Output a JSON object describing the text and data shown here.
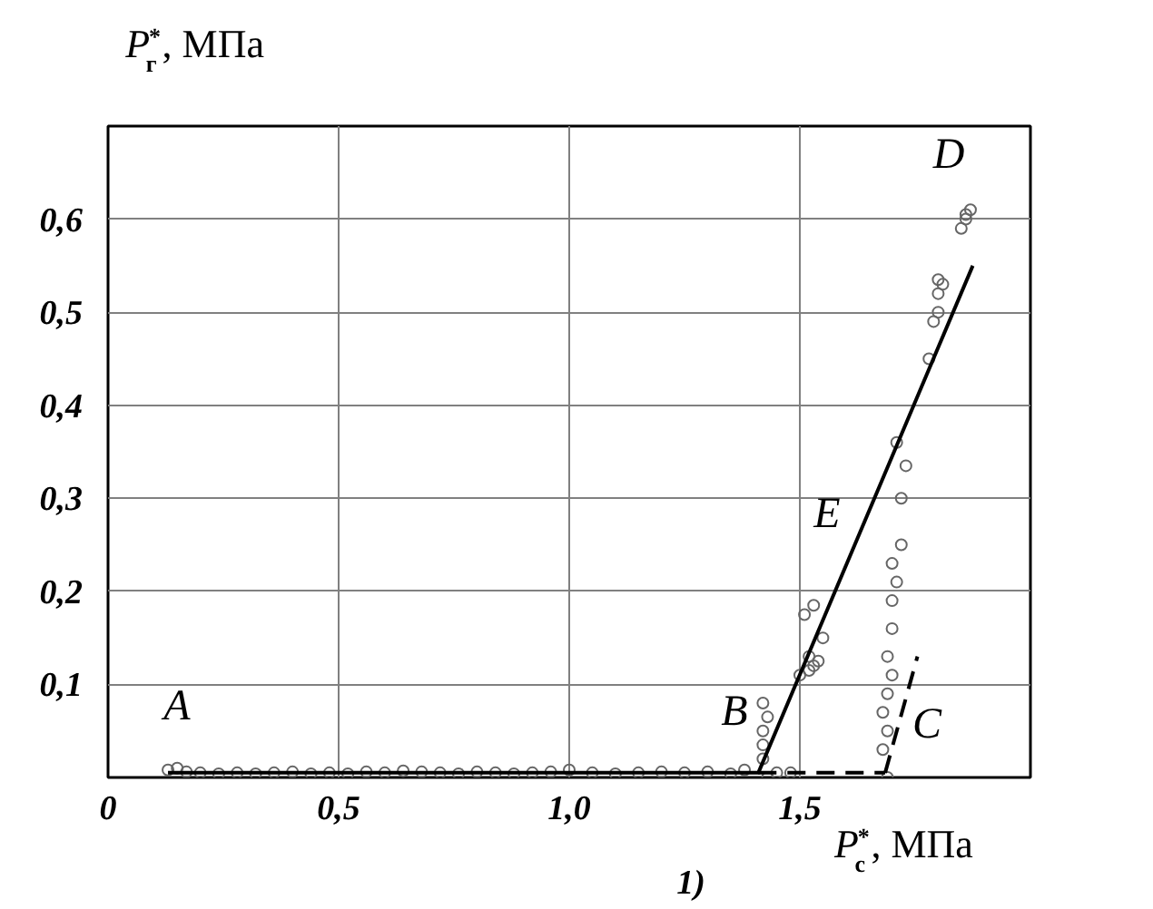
{
  "chart_data": {
    "type": "scatter",
    "xlabel": "P$_{с}$$^{*}$, МПа",
    "ylabel": "P$_{г}$$^{*}$, МПа",
    "xlim": [
      0,
      2.0
    ],
    "ylim": [
      0,
      0.7
    ],
    "xticks": [
      {
        "value": 0,
        "label": "0"
      },
      {
        "value": 0.5,
        "label": "0,5"
      },
      {
        "value": 1.0,
        "label": "1,0"
      },
      {
        "value": 1.5,
        "label": "1,5"
      }
    ],
    "yticks": [
      {
        "value": 0.1,
        "label": "0,1"
      },
      {
        "value": 0.2,
        "label": "0,2"
      },
      {
        "value": 0.3,
        "label": "0,3"
      },
      {
        "value": 0.4,
        "label": "0,4"
      },
      {
        "value": 0.5,
        "label": "0,5"
      },
      {
        "value": 0.6,
        "label": "0,6"
      }
    ],
    "grid": true,
    "series": [
      {
        "marker": "circle",
        "color": "#666666",
        "x": [
          0.13,
          0.15,
          0.17,
          0.2,
          0.24,
          0.28,
          0.32,
          0.36,
          0.4,
          0.44,
          0.48,
          0.52,
          0.56,
          0.6,
          0.64,
          0.68,
          0.72,
          0.76,
          0.8,
          0.84,
          0.88,
          0.92,
          0.96,
          1.0,
          1.05,
          1.1,
          1.15,
          1.2,
          1.25,
          1.3,
          1.35,
          1.38,
          1.42,
          1.42,
          1.42,
          1.43,
          1.42,
          1.43,
          1.45,
          1.48,
          1.5,
          1.52,
          1.53,
          1.54,
          1.52,
          1.55,
          1.51,
          1.53,
          1.69,
          1.68,
          1.69,
          1.68,
          1.69,
          1.7,
          1.69,
          1.7,
          1.7,
          1.71,
          1.7,
          1.72,
          1.72,
          1.73,
          1.71,
          1.78,
          1.79,
          1.8,
          1.8,
          1.81,
          1.8,
          1.85,
          1.86,
          1.86,
          1.87
        ],
        "values": [
          0.008,
          0.01,
          0.006,
          0.005,
          0.004,
          0.005,
          0.004,
          0.005,
          0.006,
          0.004,
          0.005,
          0.004,
          0.006,
          0.005,
          0.007,
          0.006,
          0.005,
          0.004,
          0.006,
          0.005,
          0.004,
          0.005,
          0.006,
          0.008,
          0.005,
          0.004,
          0.005,
          0.006,
          0.005,
          0.006,
          0.004,
          0.008,
          0.02,
          0.035,
          0.05,
          0.065,
          0.08,
          0.0,
          0.005,
          0.005,
          0.11,
          0.115,
          0.12,
          0.125,
          0.13,
          0.15,
          0.175,
          0.185,
          0.0,
          0.03,
          0.05,
          0.07,
          0.09,
          0.11,
          0.13,
          0.16,
          0.19,
          0.21,
          0.23,
          0.25,
          0.3,
          0.335,
          0.36,
          0.45,
          0.49,
          0.5,
          0.52,
          0.53,
          0.535,
          0.59,
          0.6,
          0.605,
          0.61
        ]
      },
      {
        "type": "line",
        "line_style": "solid",
        "color": "#000000",
        "x": [
          0.13,
          1.41,
          1.875
        ],
        "values": [
          0.005,
          0.005,
          0.55
        ]
      },
      {
        "type": "line",
        "line_style": "dashed",
        "color": "#000000",
        "x": [
          1.41,
          1.685
        ],
        "values": [
          0.005,
          0.005
        ]
      },
      {
        "type": "line",
        "line_style": "dashed",
        "color": "#000000",
        "x": [
          1.685,
          1.755
        ],
        "values": [
          0.005,
          0.13
        ]
      }
    ],
    "annotations": [
      "A",
      "B",
      "C",
      "D",
      "E",
      "1)"
    ]
  }
}
